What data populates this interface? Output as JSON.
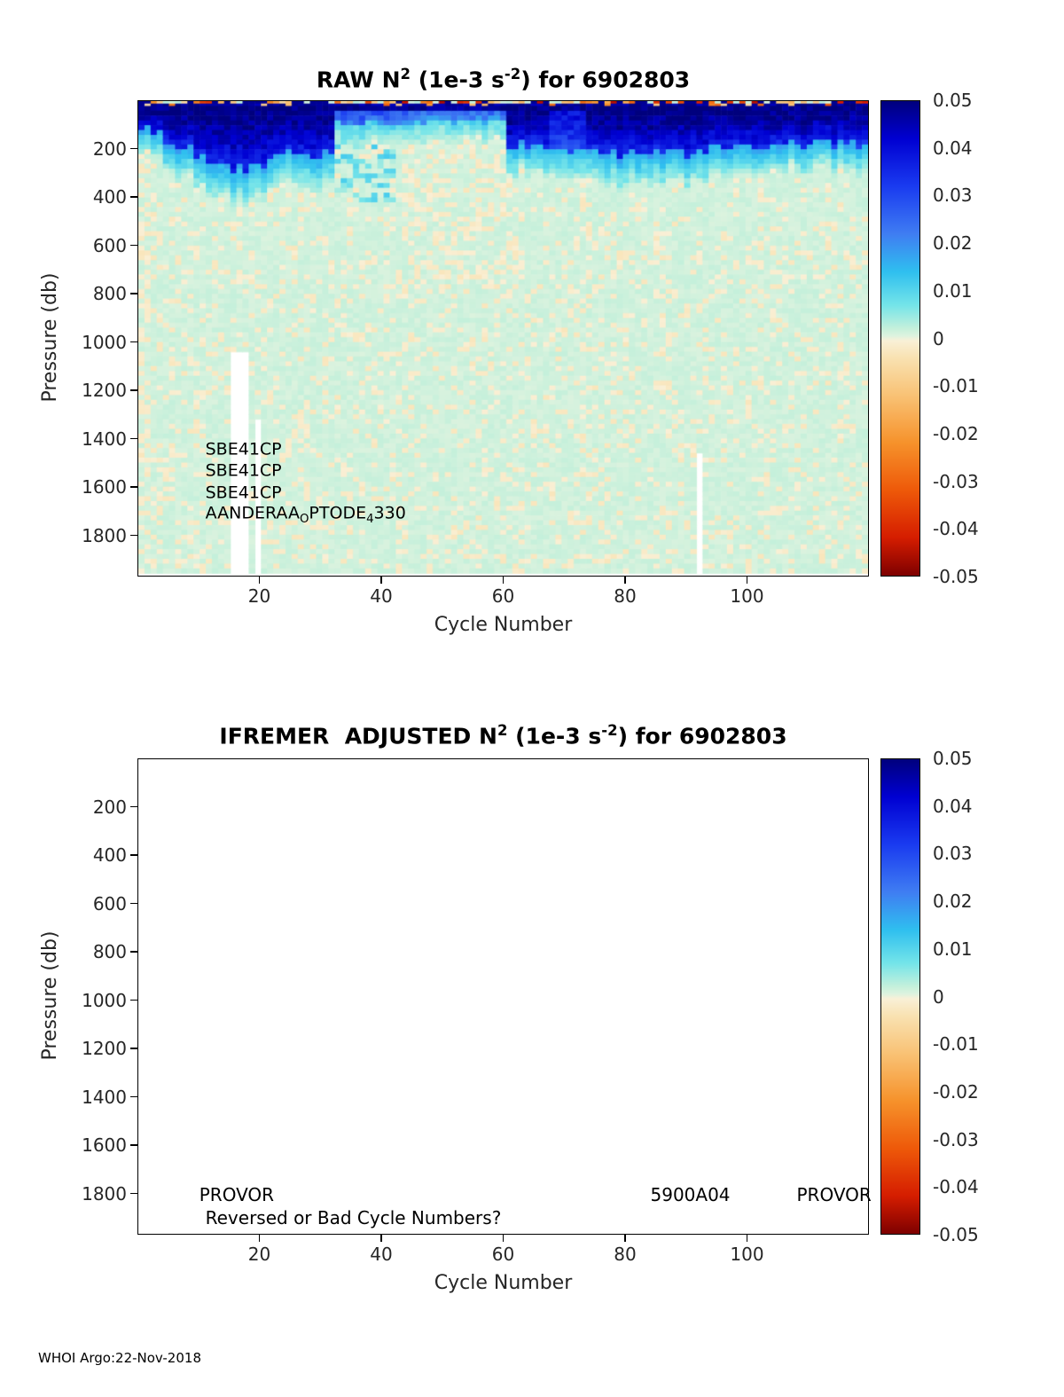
{
  "page": {
    "footer_text": "WHOI Argo:22-Nov-2018",
    "background_color": "#ffffff",
    "text_color": "#000000"
  },
  "colormap": {
    "stops": [
      {
        "v": 0.05,
        "c": "#00007D"
      },
      {
        "v": 0.042,
        "c": "#0000D2"
      },
      {
        "v": 0.032,
        "c": "#1A3BF0"
      },
      {
        "v": 0.022,
        "c": "#3F7DF2"
      },
      {
        "v": 0.014,
        "c": "#2FBFEF"
      },
      {
        "v": 0.007,
        "c": "#74E4E9"
      },
      {
        "v": 0.002,
        "c": "#C6F0DB"
      },
      {
        "v": 0.0005,
        "c": "#DEF3DF"
      },
      {
        "v": -0.0005,
        "c": "#F9F0D7"
      },
      {
        "v": -0.004,
        "c": "#F9E2B2"
      },
      {
        "v": -0.012,
        "c": "#F9C275"
      },
      {
        "v": -0.022,
        "c": "#F6922B"
      },
      {
        "v": -0.032,
        "c": "#EE5909"
      },
      {
        "v": -0.042,
        "c": "#D51D00"
      },
      {
        "v": -0.05,
        "c": "#7E0000"
      }
    ]
  },
  "colorbar": {
    "vmin": -0.05,
    "vmax": 0.05,
    "tick_labels": [
      "0.05",
      "0.04",
      "0.03",
      "0.02",
      "0.01",
      "0",
      "-0.01",
      "-0.02",
      "-0.03",
      "-0.04",
      "-0.05"
    ]
  },
  "chart_data": [
    {
      "id": "raw",
      "type": "heatmap",
      "title": "RAW N^2 (1e-3 s^-2) for 6902803",
      "title_segments": [
        {
          "t": "RAW N"
        },
        {
          "t": "2",
          "sup": true
        },
        {
          "t": " (1e-3 s"
        },
        {
          "t": "-2",
          "sup": true
        },
        {
          "t": ") for 6902803"
        }
      ],
      "float_id": "6902803",
      "value_units": "1e-3 s^-2",
      "xlabel": "Cycle Number",
      "ylabel": "Pressure (db)",
      "xlim": [
        0,
        120
      ],
      "ylim": [
        0,
        1970
      ],
      "y_axis_reversed": true,
      "xticks": [
        20,
        40,
        60,
        80,
        100
      ],
      "yticks": [
        200,
        400,
        600,
        800,
        1000,
        1200,
        1400,
        1600,
        1800
      ],
      "grid": {
        "n_cycles": 119,
        "pressure_bin_db": 20
      },
      "pattern": {
        "seed": 98765,
        "description": "Strong positive stratification (0.03-0.05) in upper 100-280 db (deepest dark-blue patches at cycles 8-30 and 62-119, weaker/shallower at cycles 33-60); cyan transition (0.005-0.02) below the surface band; deep ocean near-zero pale green baseline ~0.0012 with scattered slightly negative cream speckles ~-0.002; thin orange/red negative dashes (-0.01 to -0.05) at the very surface; white = missing data",
        "surface_max_value": 0.05,
        "deep_baseline_value": 0.0012,
        "deep_negative_value": -0.002,
        "deep_negative_fraction": 0.17,
        "missing_data": [
          {
            "cycle_min": 16,
            "cycle_max": 18,
            "below_db": 1040
          },
          {
            "cycle_min": 20,
            "cycle_max": 20,
            "below_db": 1320
          },
          {
            "cycle_min": 92,
            "cycle_max": 92,
            "below_db": 1450
          }
        ]
      },
      "annotations": [
        {
          "text": "SBE41CP",
          "x_cycle": 11,
          "y_pressure": 1440
        },
        {
          "text": "SBE41CP",
          "x_cycle": 11,
          "y_pressure": 1530
        },
        {
          "text": "SBE41CP",
          "x_cycle": 11,
          "y_pressure": 1620
        },
        {
          "text": "AANDERAA_OPTODE_4330",
          "segments": [
            {
              "t": "AANDERAA"
            },
            {
              "t": "O",
              "sub": true
            },
            {
              "t": "PTODE"
            },
            {
              "t": "4",
              "sub": true
            },
            {
              "t": "330"
            }
          ],
          "x_cycle": 11,
          "y_pressure": 1712
        }
      ]
    },
    {
      "id": "adjusted",
      "type": "heatmap",
      "title": "IFREMER  ADJUSTED N^2 (1e-3 s^-2) for 6902803",
      "title_segments": [
        {
          "t": "IFREMER  ADJUSTED N"
        },
        {
          "t": "2",
          "sup": true
        },
        {
          "t": " (1e-3 s"
        },
        {
          "t": "-2",
          "sup": true
        },
        {
          "t": ") for 6902803"
        }
      ],
      "float_id": "6902803",
      "value_units": "1e-3 s^-2",
      "xlabel": "Cycle Number",
      "ylabel": "Pressure (db)",
      "xlim": [
        0,
        120
      ],
      "ylim": [
        0,
        1970
      ],
      "y_axis_reversed": true,
      "xticks": [
        20,
        40,
        60,
        80,
        100
      ],
      "yticks": [
        200,
        400,
        600,
        800,
        1000,
        1200,
        1400,
        1600,
        1800
      ],
      "empty": true,
      "note": "No adjusted data plotted (blank panel)",
      "annotations": [
        {
          "text": "PROVOR",
          "x_cycle": 10,
          "y_pressure": 1800
        },
        {
          "text": "5900A04",
          "x_cycle": 84,
          "y_pressure": 1800
        },
        {
          "text": "PROVOR",
          "x_cycle": 108,
          "y_pressure": 1800
        },
        {
          "text": "Reversed or Bad Cycle Numbers?",
          "x_cycle": 11,
          "y_pressure": 1895
        }
      ]
    }
  ]
}
